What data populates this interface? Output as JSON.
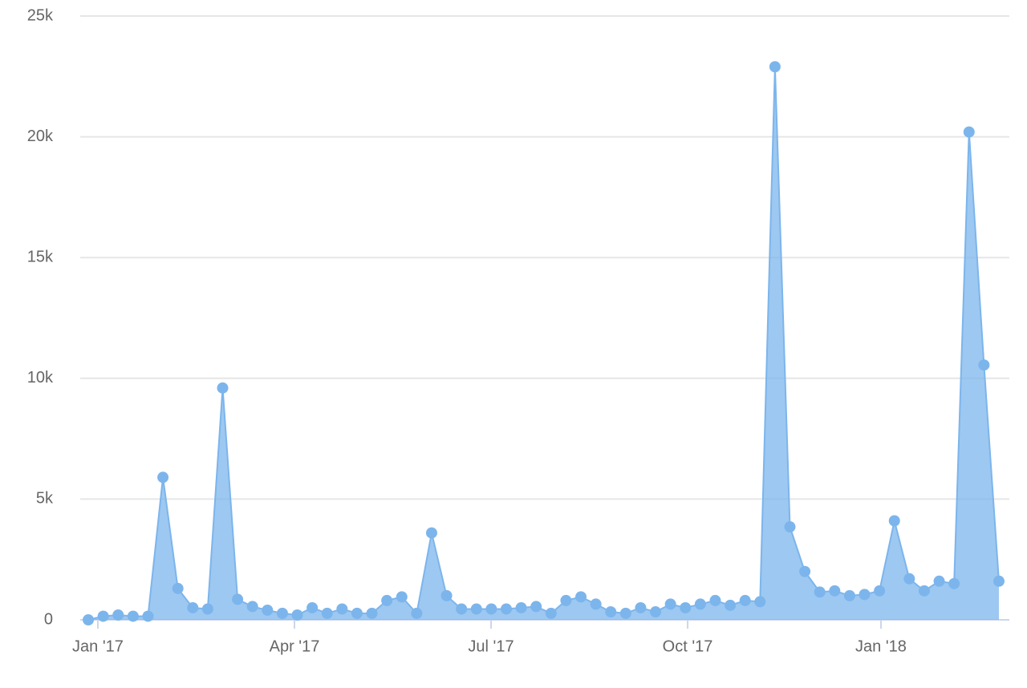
{
  "chart_data": {
    "type": "area",
    "x": [
      0,
      1,
      2,
      3,
      4,
      5,
      6,
      7,
      8,
      9,
      10,
      11,
      12,
      13,
      14,
      15,
      16,
      17,
      18,
      19,
      20,
      21,
      22,
      23,
      24,
      25,
      26,
      27,
      28,
      29,
      30,
      31,
      32,
      33,
      34,
      35,
      36,
      37,
      38,
      39,
      40,
      41,
      42,
      43,
      44,
      45,
      46,
      47,
      48,
      49,
      50,
      51,
      52,
      53,
      54,
      55,
      56,
      57,
      58,
      59,
      60,
      61
    ],
    "series": [
      {
        "color": "#7cb5ec",
        "values": [
          0,
          150,
          200,
          150,
          150,
          5900,
          1300,
          500,
          450,
          9600,
          850,
          550,
          400,
          270,
          200,
          500,
          270,
          450,
          270,
          270,
          800,
          950,
          270,
          3600,
          1000,
          450,
          450,
          450,
          450,
          500,
          550,
          270,
          800,
          950,
          650,
          330,
          270,
          500,
          330,
          650,
          500,
          650,
          800,
          600,
          800,
          750,
          22900,
          3850,
          2000,
          1150,
          1200,
          1000,
          1050,
          1200,
          4100,
          1700,
          1200,
          1600,
          1500,
          20200,
          10550,
          1600
        ]
      }
    ],
    "xlim": [
      -0.54,
      61.7
    ],
    "xticks": [
      {
        "value": 0.64,
        "label": "Jan '17"
      },
      {
        "value": 13.81,
        "label": "Apr '17"
      },
      {
        "value": 26.98,
        "label": "Jul '17"
      },
      {
        "value": 40.15,
        "label": "Oct '17"
      },
      {
        "value": 53.1,
        "label": "Jan '18"
      }
    ],
    "ylim": [
      0,
      25000
    ],
    "yticks": [
      0,
      {
        "value": 5000,
        "label": "5k"
      },
      {
        "value": 10000,
        "label": "10k"
      },
      {
        "value": 15000,
        "label": "15k"
      },
      {
        "value": 20000,
        "label": "20k"
      },
      {
        "value": 25000,
        "label": "25k"
      }
    ],
    "grid": true
  }
}
